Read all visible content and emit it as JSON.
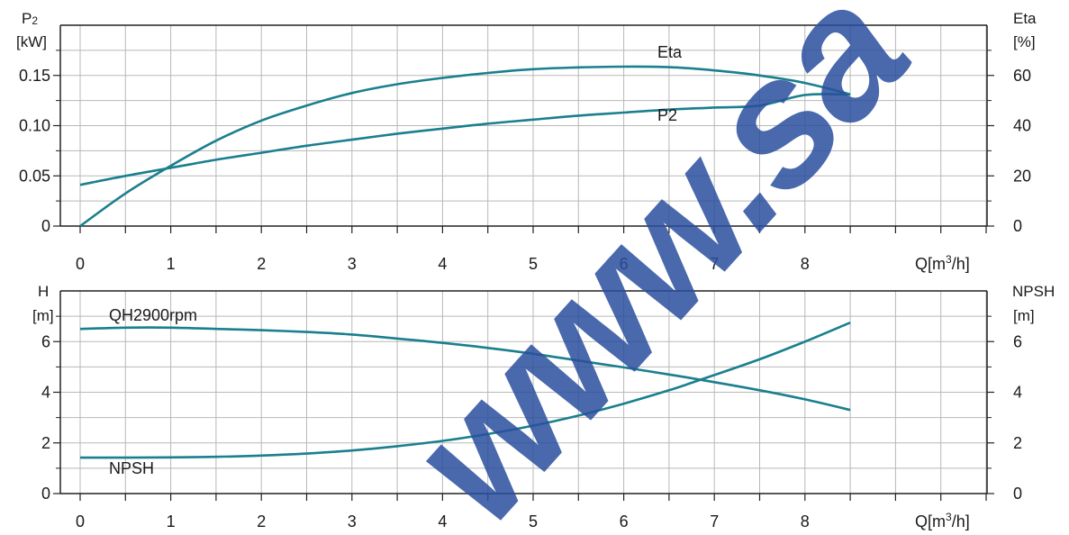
{
  "colors": {
    "curve": "#1a7f8e",
    "grid": "#b8b8b8",
    "axis": "#222222",
    "watermark": "#2a4f9e"
  },
  "watermark": "www.sa",
  "chart_data": [
    {
      "type": "line",
      "left_label": [
        "P",
        "2"
      ],
      "left_unit": "[kW]",
      "right_label": "Eta",
      "right_unit": "[%]",
      "xlabel": "Q[m",
      "xlabel_sup": "3",
      "xlabel_end": "/h]",
      "xlim": [
        0,
        10
      ],
      "x_ticks": [
        "0",
        "1",
        "2",
        "3",
        "4",
        "5",
        "6",
        "7",
        "8"
      ],
      "left_ylim": [
        0,
        0.2
      ],
      "left_ticks": [
        "0",
        "0.05",
        "0.10",
        "0.15"
      ],
      "right_ylim": [
        0,
        80
      ],
      "right_ticks": [
        "0",
        "20",
        "40",
        "60"
      ],
      "grid": true,
      "series": [
        {
          "name": "Eta",
          "axis": "right",
          "points": [
            [
              0,
              0
            ],
            [
              0.5,
              13
            ],
            [
              1,
              24
            ],
            [
              1.5,
              34
            ],
            [
              2,
              42
            ],
            [
              2.5,
              48
            ],
            [
              3,
              53
            ],
            [
              3.5,
              56.5
            ],
            [
              4,
              59
            ],
            [
              4.5,
              61
            ],
            [
              5,
              62.5
            ],
            [
              5.5,
              63.2
            ],
            [
              6,
              63.5
            ],
            [
              6.5,
              63.3
            ],
            [
              7,
              62
            ],
            [
              7.5,
              60
            ],
            [
              8,
              57
            ],
            [
              8.5,
              52.5
            ]
          ]
        },
        {
          "name": "P2",
          "axis": "left",
          "points": [
            [
              0,
              0.041
            ],
            [
              0.5,
              0.05
            ],
            [
              1,
              0.058
            ],
            [
              1.5,
              0.066
            ],
            [
              2,
              0.073
            ],
            [
              2.5,
              0.08
            ],
            [
              3,
              0.086
            ],
            [
              3.5,
              0.092
            ],
            [
              4,
              0.097
            ],
            [
              4.5,
              0.102
            ],
            [
              5,
              0.106
            ],
            [
              5.5,
              0.11
            ],
            [
              6,
              0.113
            ],
            [
              6.5,
              0.116
            ],
            [
              7,
              0.118
            ],
            [
              7.5,
              0.12
            ],
            [
              8,
              0.1305
            ],
            [
              8.5,
              0.131
            ]
          ]
        }
      ]
    },
    {
      "type": "line",
      "left_label": [
        "H",
        ""
      ],
      "left_unit": "[m]",
      "right_label": "NPSH",
      "right_unit": "[m]",
      "xlabel": "Q[m",
      "xlabel_sup": "3",
      "xlabel_end": "/h]",
      "xlim": [
        0,
        10
      ],
      "x_ticks": [
        "0",
        "1",
        "2",
        "3",
        "4",
        "5",
        "6",
        "7",
        "8"
      ],
      "left_ylim": [
        0,
        8
      ],
      "left_ticks": [
        "0",
        "2",
        "4",
        "6"
      ],
      "right_ylim": [
        0,
        8
      ],
      "right_ticks": [
        "0",
        "2",
        "4",
        "6"
      ],
      "grid": true,
      "series": [
        {
          "name": "QH2900rpm",
          "axis": "left",
          "points": [
            [
              0,
              6.5
            ],
            [
              0.5,
              6.55
            ],
            [
              1,
              6.55
            ],
            [
              1.5,
              6.5
            ],
            [
              2,
              6.45
            ],
            [
              2.5,
              6.38
            ],
            [
              3,
              6.28
            ],
            [
              3.5,
              6.12
            ],
            [
              4,
              5.95
            ],
            [
              4.5,
              5.75
            ],
            [
              5,
              5.52
            ],
            [
              5.5,
              5.25
            ],
            [
              6,
              4.98
            ],
            [
              6.5,
              4.7
            ],
            [
              7,
              4.4
            ],
            [
              7.5,
              4.08
            ],
            [
              8,
              3.72
            ],
            [
              8.5,
              3.3
            ]
          ]
        },
        {
          "name": "NPSH",
          "axis": "right",
          "points": [
            [
              0,
              1.42
            ],
            [
              0.5,
              1.42
            ],
            [
              1,
              1.43
            ],
            [
              1.5,
              1.45
            ],
            [
              2,
              1.5
            ],
            [
              2.5,
              1.58
            ],
            [
              3,
              1.7
            ],
            [
              3.5,
              1.87
            ],
            [
              4,
              2.08
            ],
            [
              4.5,
              2.35
            ],
            [
              5,
              2.68
            ],
            [
              5.5,
              3.08
            ],
            [
              6,
              3.55
            ],
            [
              6.5,
              4.08
            ],
            [
              7,
              4.68
            ],
            [
              7.5,
              5.3
            ],
            [
              8,
              6.0
            ],
            [
              8.5,
              6.75
            ]
          ]
        }
      ]
    }
  ]
}
